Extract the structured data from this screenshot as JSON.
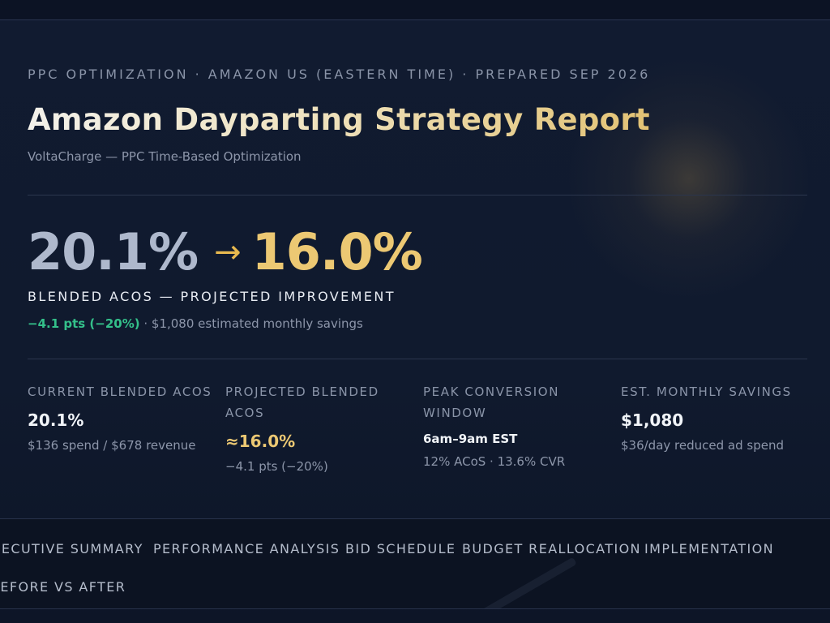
{
  "header": {
    "eyebrow": "PPC OPTIMIZATION · AMAZON US (EASTERN TIME) · PREPARED SEP 2026",
    "title": "Amazon Dayparting Strategy Report",
    "subtitle": "VoltaCharge — PPC Time-Based Optimization"
  },
  "hero": {
    "from_value": "20.1%",
    "arrow": "→",
    "to_value": "16.0%",
    "label": "BLENDED ACOS — PROJECTED IMPROVEMENT",
    "delta": "−4.1 pts (−20%)",
    "savings_note": " · $1,080 estimated monthly savings"
  },
  "stats": [
    {
      "label": "CURRENT BLENDED ACOS",
      "value": "20.1%",
      "note": "$136 spend / $678 revenue"
    },
    {
      "label": "PROJECTED BLENDED ACOS",
      "value": "≈16.0%",
      "note": "−4.1 pts (−20%)"
    },
    {
      "label": "PEAK CONVERSION WINDOW",
      "value": "6am–9am EST",
      "note": "12% ACoS · 13.6% CVR"
    },
    {
      "label": "EST. MONTHLY SAVINGS",
      "value": "$1,080",
      "note": "$36/day reduced ad spend"
    }
  ],
  "nav": {
    "items": [
      "EXECUTIVE SUMMARY",
      "PERFORMANCE ANALYSIS",
      "BID SCHEDULE",
      "BUDGET REALLOCATION",
      "IMPLEMENTATION",
      "BEFORE VS AFTER"
    ]
  },
  "colors": {
    "background": "#111b30",
    "accent_gold": "#ecc873",
    "positive_green": "#34c08a",
    "muted_text": "#8d96aa"
  }
}
